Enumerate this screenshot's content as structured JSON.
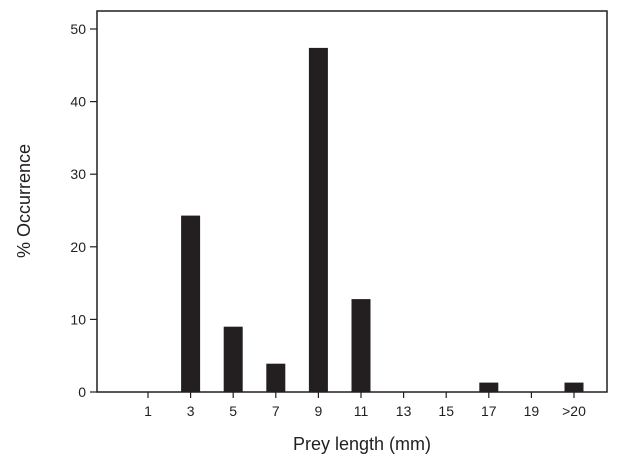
{
  "chart_data": {
    "type": "bar",
    "title": "",
    "xlabel": "Prey length (mm)",
    "ylabel": "% Occurrence",
    "categories": [
      "1",
      "3",
      "5",
      "7",
      "9",
      "11",
      "13",
      "15",
      "17",
      "19",
      ">20"
    ],
    "values": [
      0,
      24.3,
      9.0,
      3.9,
      47.4,
      12.8,
      0,
      0,
      1.3,
      0,
      1.3
    ],
    "ylim": [
      0,
      50
    ],
    "yticks": [
      "0",
      "10",
      "20",
      "30",
      "40",
      "50"
    ],
    "grid": false,
    "legend": "none",
    "bar_color": "#231f20"
  }
}
